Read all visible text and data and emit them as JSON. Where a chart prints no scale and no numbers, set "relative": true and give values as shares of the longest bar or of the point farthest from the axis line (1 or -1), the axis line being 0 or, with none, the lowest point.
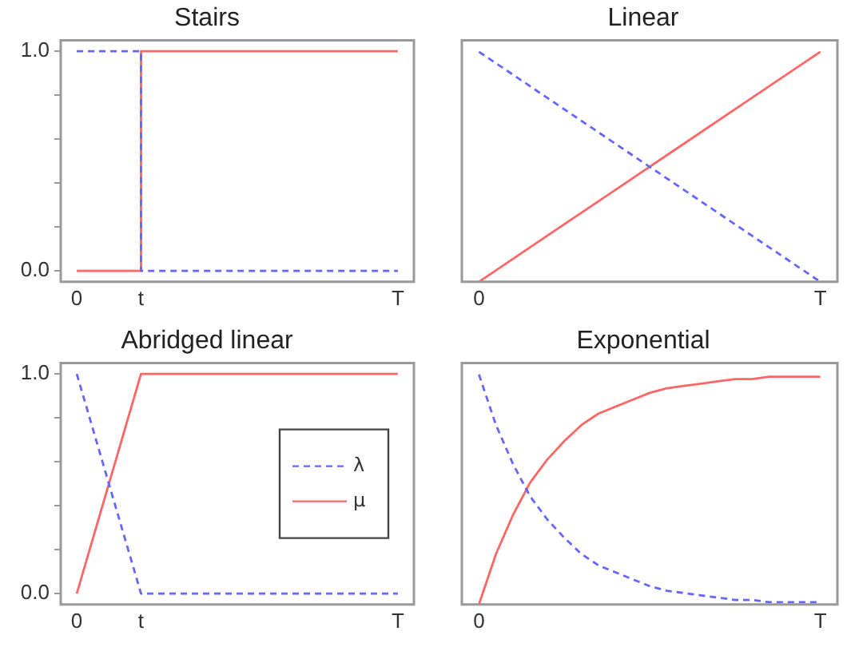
{
  "chart_data": [
    {
      "type": "step",
      "title": "Stairs",
      "categories": [
        "0",
        "t",
        null,
        null,
        null,
        "T"
      ],
      "ylim": [
        -0.05,
        1.05
      ],
      "yticks": [
        {
          "value": 0,
          "label": "0.0"
        },
        {
          "value": 0.2,
          "label": null
        },
        {
          "value": 0.4,
          "label": null
        },
        {
          "value": 0.6,
          "label": null
        },
        {
          "value": 0.8,
          "label": null
        },
        {
          "value": 1,
          "label": "1.0"
        }
      ],
      "grid": false,
      "marker": "none",
      "series": [
        {
          "color": "#6666ff",
          "line_style": "dashed",
          "values": [
            1,
            0,
            0,
            0,
            0,
            0
          ]
        },
        {
          "color": "#ff6666",
          "line_style": "solid",
          "values": [
            0,
            1,
            1,
            1,
            1,
            1
          ]
        }
      ]
    },
    {
      "type": "line",
      "title": "Linear",
      "categories": [
        "0",
        null,
        null,
        null,
        null,
        "T"
      ],
      "relative": true,
      "grid": false,
      "marker": "none",
      "series": [
        {
          "color": "#6666ff",
          "line_style": "dashed",
          "values": [
            1,
            0.8,
            0.6,
            0.4,
            0.2,
            0
          ]
        },
        {
          "color": "#ff6666",
          "line_style": "solid",
          "values": [
            0,
            0.2,
            0.4,
            0.6,
            0.8,
            1
          ]
        }
      ]
    },
    {
      "type": "line",
      "title": "Abridged linear",
      "categories": [
        "0",
        "t",
        null,
        null,
        null,
        "T"
      ],
      "ylim": [
        -0.05,
        1.05
      ],
      "yticks": [
        {
          "value": 0,
          "label": "0.0"
        },
        {
          "value": 0.2,
          "label": null
        },
        {
          "value": 0.4,
          "label": null
        },
        {
          "value": 0.6,
          "label": null
        },
        {
          "value": 0.8,
          "label": null
        },
        {
          "value": 1,
          "label": "1.0"
        }
      ],
      "grid": false,
      "marker": "none",
      "legend": "right",
      "series": [
        {
          "name": "λ",
          "color": "#6666ff",
          "line_style": "dashed",
          "values": [
            1,
            0,
            0,
            0,
            0,
            0
          ]
        },
        {
          "name": "μ",
          "color": "#ff6666",
          "line_style": "solid",
          "values": [
            0,
            1,
            1,
            1,
            1,
            1
          ]
        }
      ]
    },
    {
      "type": "line",
      "title": "Exponential",
      "categories": [
        "0",
        null,
        null,
        null,
        null,
        null,
        null,
        null,
        null,
        null,
        null,
        null,
        null,
        null,
        null,
        null,
        null,
        null,
        null,
        null,
        "T"
      ],
      "relative": true,
      "grid": false,
      "marker": "none",
      "series": [
        {
          "color": "#6666ff",
          "line_style": "dashed",
          "values": [
            1,
            0.78,
            0.61,
            0.47,
            0.37,
            0.29,
            0.22,
            0.17,
            0.14,
            0.11,
            0.08,
            0.06,
            0.05,
            0.04,
            0.03,
            0.02,
            0.02,
            0.01,
            0.01,
            0.01,
            0.01
          ]
        },
        {
          "color": "#ff6666",
          "line_style": "solid",
          "values": [
            0,
            0.22,
            0.39,
            0.53,
            0.63,
            0.71,
            0.78,
            0.83,
            0.86,
            0.89,
            0.92,
            0.94,
            0.95,
            0.96,
            0.97,
            0.98,
            0.98,
            0.99,
            0.99,
            0.99,
            0.99
          ]
        }
      ]
    }
  ]
}
